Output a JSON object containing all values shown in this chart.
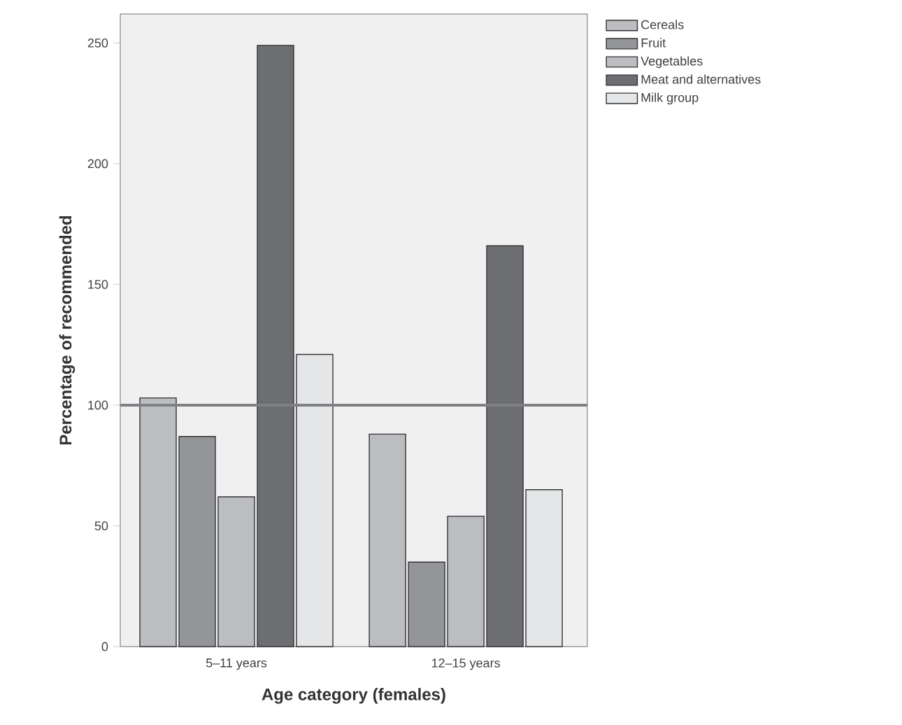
{
  "chart_data": {
    "type": "bar",
    "xlabel": "Age category (females)",
    "ylabel": "Percentage of recommended",
    "categories": [
      "5–11 years",
      "12–15 years"
    ],
    "series": [
      {
        "name": "Cereals",
        "color": "#bcbdc1",
        "values": [
          103,
          88
        ]
      },
      {
        "name": "Fruit",
        "color": "#949598",
        "values": [
          87,
          35
        ]
      },
      {
        "name": "Vegetables",
        "color": "#bcbdc1",
        "values": [
          62,
          54
        ]
      },
      {
        "name": "Meat and alternatives",
        "color": "#6d6e71",
        "values": [
          249,
          166
        ]
      },
      {
        "name": "Milk group",
        "color": "#e5e6e8",
        "values": [
          121,
          65
        ]
      }
    ],
    "ylim": [
      0,
      262
    ],
    "yticks": [
      0,
      50,
      100,
      150,
      200,
      250
    ],
    "ref_lines": [
      {
        "axis": "y",
        "value": 100,
        "color": "#808184"
      }
    ],
    "legend": "top right",
    "grid": false
  }
}
